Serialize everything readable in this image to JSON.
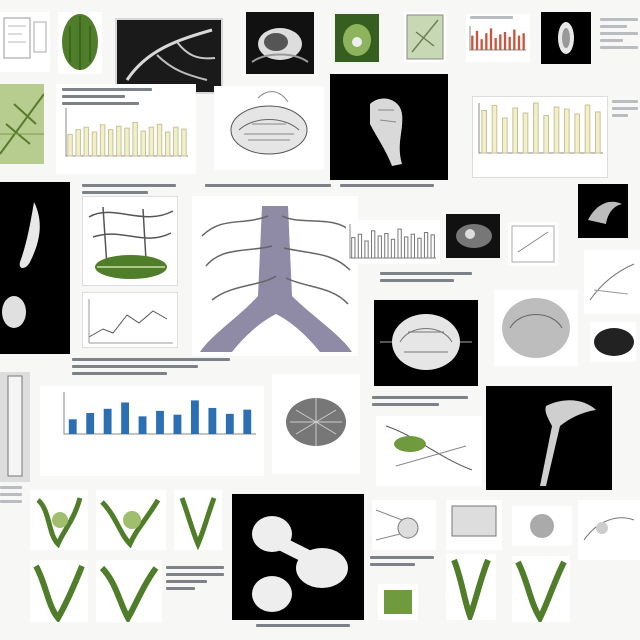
{
  "collage": {
    "colors": {
      "leaf_green": "#4f7d2a",
      "light_green": "#9fbf6f",
      "black": "#0a0a0a",
      "cream_bar": "#f3efc8",
      "bar_blue": "#2d6fb3",
      "bar_red": "#c8553d",
      "purple_gray": "#8f8aa6",
      "paper": "#ffffff"
    },
    "blue_bar_chart": {
      "type": "bar",
      "values": [
        0.35,
        0.5,
        0.6,
        0.75,
        0.42,
        0.55,
        0.46,
        0.8,
        0.62,
        0.48,
        0.58
      ]
    },
    "cream_bar_chart": {
      "type": "bar",
      "values": [
        0.45,
        0.55,
        0.6,
        0.5,
        0.65,
        0.55,
        0.62,
        0.58,
        0.7,
        0.52,
        0.6,
        0.66,
        0.5,
        0.6,
        0.56
      ]
    },
    "upper_right_bars": {
      "type": "bar",
      "values": [
        0.6,
        0.8,
        0.45,
        0.7,
        0.9,
        0.5,
        0.65,
        0.75,
        0.55,
        0.85,
        0.6,
        0.7
      ]
    },
    "tall_bar_chart": {
      "type": "bar",
      "values": [
        0.85,
        0.95,
        0.7,
        0.9,
        0.8,
        1.0,
        0.75,
        0.92,
        0.88,
        0.78,
        0.96,
        0.82
      ]
    },
    "mid_bar_chart": {
      "type": "bar",
      "values": [
        0.6,
        0.7,
        0.5,
        0.8,
        0.65,
        0.72,
        0.55,
        0.85,
        0.62,
        0.7,
        0.58,
        0.75,
        0.68
      ]
    }
  }
}
